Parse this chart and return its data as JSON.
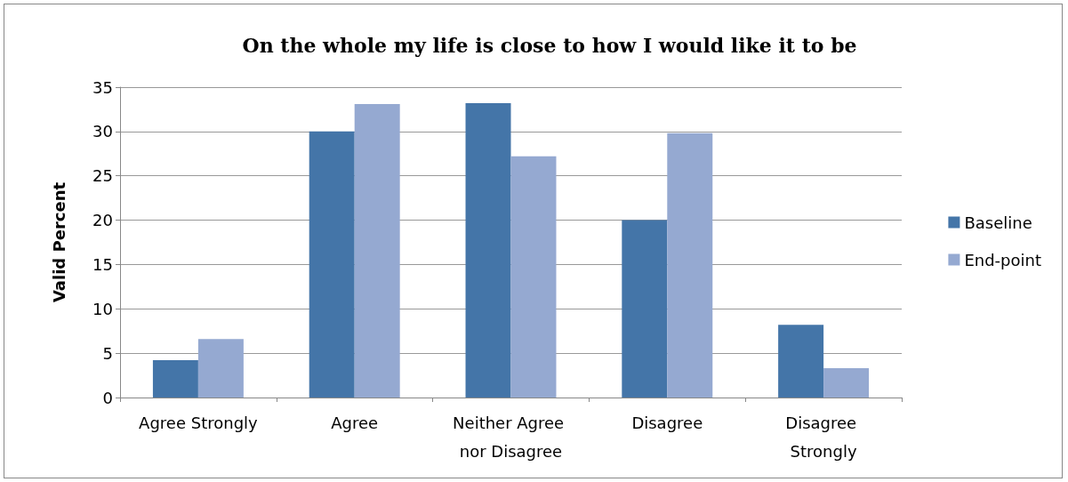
{
  "chart_data": {
    "type": "bar",
    "title": "On the whole my life is close to how I would like it to be",
    "ylabel": "Valid Percent",
    "categories": [
      "Agree Strongly",
      "Agree",
      "Neither Agree nor Disagree",
      "Disagree",
      "Disagree Strongly"
    ],
    "series": [
      {
        "name": "Baseline",
        "color": "#4475a8",
        "values": [
          4.2,
          30.0,
          33.2,
          20.0,
          8.2
        ]
      },
      {
        "name": "End-point",
        "color": "#95a9d1",
        "values": [
          6.6,
          33.1,
          27.2,
          29.8,
          3.3
        ]
      }
    ],
    "ylim": [
      0,
      35
    ],
    "yticks": [
      0,
      5,
      10,
      15,
      20,
      25,
      30,
      35
    ],
    "grid": "y",
    "legend": "right"
  }
}
